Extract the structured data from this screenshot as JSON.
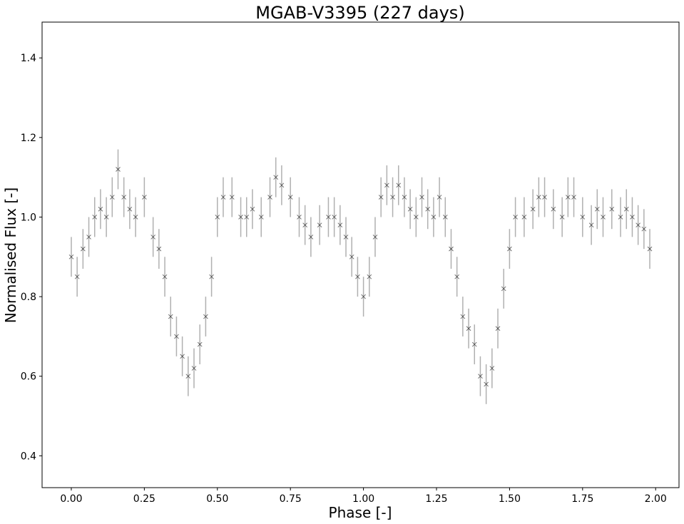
{
  "chart_data": {
    "type": "scatter",
    "title": "MGAB-V3395 (227 days)",
    "xlabel": "Phase [-]",
    "ylabel": "Normalised Flux [-]",
    "xlim": [
      -0.1,
      2.08
    ],
    "ylim": [
      0.32,
      1.49
    ],
    "x_ticks": [
      0.0,
      0.25,
      0.5,
      0.75,
      1.0,
      1.25,
      1.5,
      1.75,
      2.0
    ],
    "x_tick_labels": [
      "0.00",
      "0.25",
      "0.50",
      "0.75",
      "1.00",
      "1.25",
      "1.50",
      "1.75",
      "2.00"
    ],
    "y_ticks": [
      0.4,
      0.6,
      0.8,
      1.0,
      1.2,
      1.4
    ],
    "y_tick_labels": [
      "0.4",
      "0.6",
      "0.8",
      "1.0",
      "1.2",
      "1.4"
    ],
    "grid": false,
    "marker": "x",
    "marker_color": "#000000",
    "errorbar_color": "#b0b0b0",
    "series": [
      {
        "x": [
          0.0,
          0.02,
          0.04,
          0.06,
          0.08,
          0.1,
          0.12,
          0.14,
          0.16,
          0.18,
          0.2,
          0.22,
          0.25,
          0.28,
          0.3,
          0.32,
          0.34,
          0.36,
          0.38,
          0.4,
          0.42,
          0.44,
          0.46,
          0.48,
          0.5,
          0.52,
          0.55,
          0.58,
          0.6,
          0.62,
          0.65,
          0.68,
          0.7,
          0.72,
          0.75,
          0.78,
          0.8,
          0.82,
          0.85,
          0.88,
          0.9,
          0.92,
          0.94,
          0.96,
          0.98,
          1.0,
          1.02,
          1.04,
          1.06,
          1.08,
          1.1,
          1.12,
          1.14,
          1.16,
          1.18,
          1.2,
          1.22,
          1.24,
          1.26,
          1.28,
          1.3,
          1.32,
          1.34,
          1.36,
          1.38,
          1.4,
          1.42,
          1.44,
          1.46,
          1.48,
          1.5,
          1.52,
          1.55,
          1.58,
          1.6,
          1.62,
          1.65,
          1.68,
          1.7,
          1.72,
          1.75,
          1.78,
          1.8,
          1.82,
          1.85,
          1.88,
          1.9,
          1.92,
          1.94,
          1.96,
          1.98
        ],
        "y": [
          0.9,
          0.85,
          0.92,
          0.95,
          1.0,
          1.02,
          1.0,
          1.05,
          1.12,
          1.05,
          1.02,
          1.0,
          1.05,
          0.95,
          0.92,
          0.85,
          0.75,
          0.7,
          0.65,
          0.6,
          0.62,
          0.68,
          0.75,
          0.85,
          1.0,
          1.05,
          1.05,
          1.0,
          1.0,
          1.02,
          1.0,
          1.05,
          1.1,
          1.08,
          1.05,
          1.0,
          0.98,
          0.95,
          0.98,
          1.0,
          1.0,
          0.98,
          0.95,
          0.9,
          0.85,
          0.8,
          0.85,
          0.95,
          1.05,
          1.08,
          1.05,
          1.08,
          1.05,
          1.02,
          1.0,
          1.05,
          1.02,
          1.0,
          1.05,
          1.0,
          0.92,
          0.85,
          0.75,
          0.72,
          0.68,
          0.6,
          0.58,
          0.62,
          0.72,
          0.82,
          0.92,
          1.0,
          1.0,
          1.02,
          1.05,
          1.05,
          1.02,
          1.0,
          1.05,
          1.05,
          1.0,
          0.98,
          1.02,
          1.0,
          1.02,
          1.0,
          1.02,
          1.0,
          0.98,
          0.97,
          0.92
        ]
      }
    ]
  }
}
